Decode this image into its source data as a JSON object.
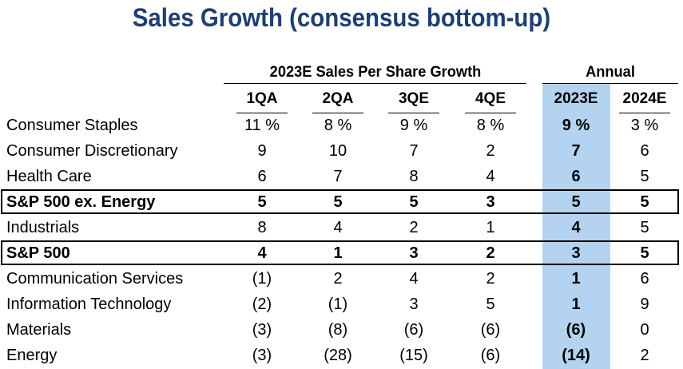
{
  "title": "Sales Growth (consensus bottom-up)",
  "chart_data": {
    "type": "table",
    "title": "Sales Growth (consensus bottom-up)",
    "column_groups": [
      {
        "label": "2023E Sales Per Share Growth"
      },
      {
        "label": "Annual"
      }
    ],
    "columns": [
      "1QA",
      "2QA",
      "3QE",
      "4QE",
      "2023E",
      "2024E"
    ],
    "highlight_column": "2023E",
    "highlight_color": "#b3d3f0",
    "title_color": "#1d3f73",
    "rows": [
      {
        "name": "Consumer Staples",
        "cells": [
          "11 %",
          "8 %",
          "9 %",
          "8 %",
          "9 %",
          "3 %"
        ],
        "values": [
          11,
          8,
          9,
          8,
          9,
          3
        ],
        "bold": false,
        "boxed": false
      },
      {
        "name": "Consumer Discretionary",
        "cells": [
          "9",
          "10",
          "7",
          "2",
          "7",
          "6"
        ],
        "values": [
          9,
          10,
          7,
          2,
          7,
          6
        ],
        "bold": false,
        "boxed": false
      },
      {
        "name": "Health Care",
        "cells": [
          "6",
          "7",
          "8",
          "4",
          "6",
          "5"
        ],
        "values": [
          6,
          7,
          8,
          4,
          6,
          5
        ],
        "bold": false,
        "boxed": false
      },
      {
        "name": "S&P 500 ex. Energy",
        "cells": [
          "5",
          "5",
          "5",
          "3",
          "5",
          "5"
        ],
        "values": [
          5,
          5,
          5,
          3,
          5,
          5
        ],
        "bold": true,
        "boxed": true
      },
      {
        "name": "Industrials",
        "cells": [
          "8",
          "4",
          "2",
          "1",
          "4",
          "5"
        ],
        "values": [
          8,
          4,
          2,
          1,
          4,
          5
        ],
        "bold": false,
        "boxed": false
      },
      {
        "name": "S&P 500",
        "cells": [
          "4",
          "1",
          "3",
          "2",
          "3",
          "5"
        ],
        "values": [
          4,
          1,
          3,
          2,
          3,
          5
        ],
        "bold": true,
        "boxed": true
      },
      {
        "name": "Communication Services",
        "cells": [
          "(1)",
          "2",
          "4",
          "2",
          "1",
          "6"
        ],
        "values": [
          -1,
          2,
          4,
          2,
          1,
          6
        ],
        "bold": false,
        "boxed": false
      },
      {
        "name": "Information Technology",
        "cells": [
          "(2)",
          "(1)",
          "3",
          "5",
          "1",
          "9"
        ],
        "values": [
          -2,
          -1,
          3,
          5,
          1,
          9
        ],
        "bold": false,
        "boxed": false
      },
      {
        "name": "Materials",
        "cells": [
          "(3)",
          "(8)",
          "(6)",
          "(6)",
          "(6)",
          "0"
        ],
        "values": [
          -3,
          -8,
          -6,
          -6,
          -6,
          0
        ],
        "bold": false,
        "boxed": false
      },
      {
        "name": "Energy",
        "cells": [
          "(3)",
          "(28)",
          "(15)",
          "(6)",
          "(14)",
          "2"
        ],
        "values": [
          -3,
          -28,
          -15,
          -6,
          -14,
          2
        ],
        "bold": false,
        "boxed": false
      }
    ]
  }
}
